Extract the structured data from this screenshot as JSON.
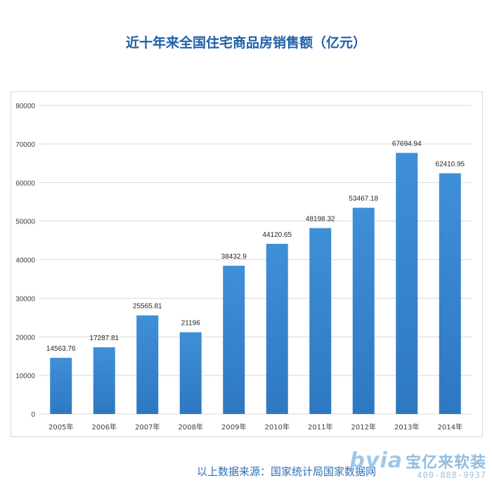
{
  "header": {
    "title": "近十年来全国住宅商品房销售额（亿元）"
  },
  "footer": {
    "source": "以上数据来源：国家统计局国家数据网"
  },
  "watermark": {
    "logo": "byia",
    "brand": "宝亿来软装",
    "phone": "400-888-9937"
  },
  "colors": {
    "bar": "#2e78c2",
    "bar_light": "#3f8fd8",
    "title": "#1f5fa8",
    "grid": "#d9d9d9"
  },
  "chart_data": {
    "type": "bar",
    "title": "近十年来全国住宅商品房销售额（亿元）",
    "categories": [
      "2005年",
      "2006年",
      "2007年",
      "2008年",
      "2009年",
      "2010年",
      "2011年",
      "2012年",
      "2013年",
      "2014年"
    ],
    "values": [
      14563.76,
      17287.81,
      25565.81,
      21196,
      38432.9,
      44120.65,
      48198.32,
      53467.18,
      67694.94,
      62410.95
    ],
    "data_labels": [
      "14563.76",
      "17287.81",
      "25565.81",
      "21196",
      "38432.9",
      "44120.65",
      "48198.32",
      "53467.18",
      "67694.94",
      "62410.95"
    ],
    "ylim": [
      0,
      80000
    ],
    "yticks": [
      0,
      10000,
      20000,
      30000,
      40000,
      50000,
      60000,
      70000,
      80000
    ],
    "grid": true,
    "legend": "none"
  }
}
